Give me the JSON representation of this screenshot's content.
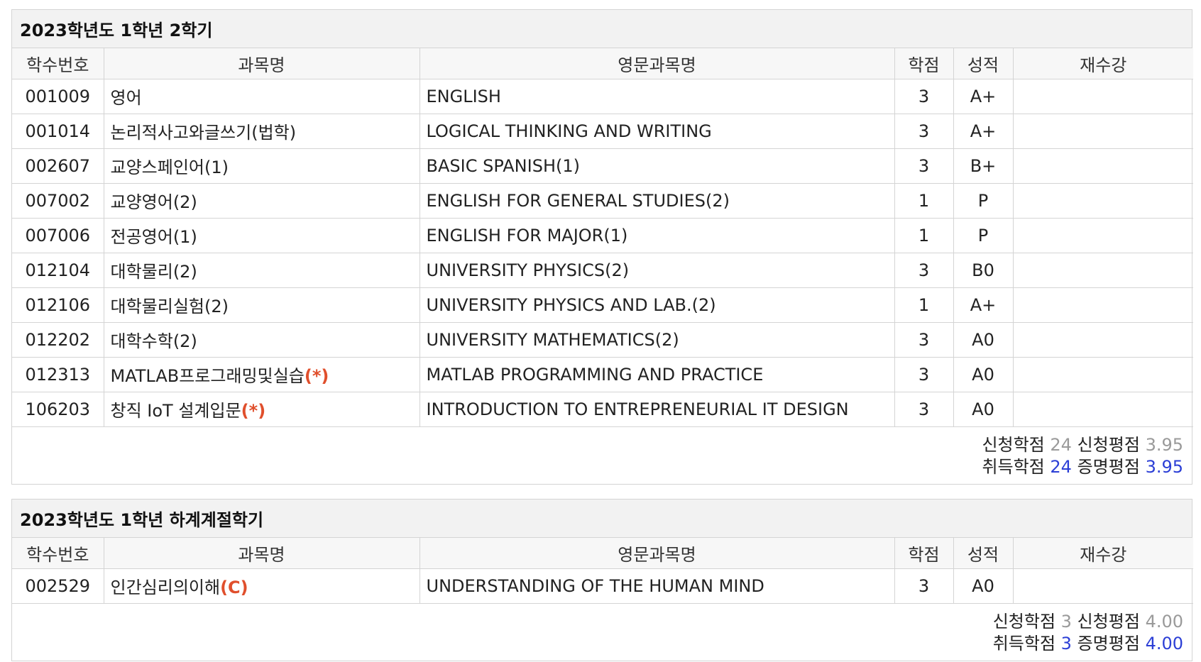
{
  "columns": {
    "code": "학수번호",
    "name": "과목명",
    "eng": "영문과목명",
    "credit": "학점",
    "grade": "성적",
    "retake": "재수강"
  },
  "summary_labels": {
    "applied_credits": "신청학점",
    "applied_gpa": "신청평점",
    "earned_credits": "취득학점",
    "certified_gpa": "증명평점"
  },
  "colors": {
    "mark": "#e04f2c",
    "blue_value": "#2c3fd6",
    "gray_value": "#9a9a9a"
  },
  "semesters": [
    {
      "title": "2023학년도 1학년 2학기",
      "rows": [
        {
          "code": "001009",
          "name": "영어",
          "mark": "",
          "eng": "ENGLISH",
          "credit": "3",
          "grade": "A+",
          "retake": ""
        },
        {
          "code": "001014",
          "name": "논리적사고와글쓰기(법학)",
          "mark": "",
          "eng": "LOGICAL THINKING AND WRITING",
          "credit": "3",
          "grade": "A+",
          "retake": ""
        },
        {
          "code": "002607",
          "name": "교양스페인어(1)",
          "mark": "",
          "eng": "BASIC SPANISH(1)",
          "credit": "3",
          "grade": "B+",
          "retake": ""
        },
        {
          "code": "007002",
          "name": "교양영어(2)",
          "mark": "",
          "eng": "ENGLISH FOR GENERAL STUDIES(2)",
          "credit": "1",
          "grade": "P",
          "retake": ""
        },
        {
          "code": "007006",
          "name": "전공영어(1)",
          "mark": "",
          "eng": "ENGLISH FOR MAJOR(1)",
          "credit": "1",
          "grade": "P",
          "retake": ""
        },
        {
          "code": "012104",
          "name": "대학물리(2)",
          "mark": "",
          "eng": "UNIVERSITY PHYSICS(2)",
          "credit": "3",
          "grade": "B0",
          "retake": ""
        },
        {
          "code": "012106",
          "name": "대학물리실험(2)",
          "mark": "",
          "eng": "UNIVERSITY PHYSICS AND LAB.(2)",
          "credit": "1",
          "grade": "A+",
          "retake": ""
        },
        {
          "code": "012202",
          "name": "대학수학(2)",
          "mark": "",
          "eng": "UNIVERSITY MATHEMATICS(2)",
          "credit": "3",
          "grade": "A0",
          "retake": ""
        },
        {
          "code": "012313",
          "name": "MATLAB프로그래밍및실습",
          "mark": "(*)",
          "eng": "MATLAB PROGRAMMING AND PRACTICE",
          "credit": "3",
          "grade": "A0",
          "retake": ""
        },
        {
          "code": "106203",
          "name": "창직 IoT 설계입문",
          "mark": "(*)",
          "eng": "INTRODUCTION TO ENTREPRENEURIAL IT DESIGN",
          "credit": "3",
          "grade": "A0",
          "retake": ""
        }
      ],
      "summary": {
        "applied_credits": "24",
        "applied_gpa": "3.95",
        "earned_credits": "24",
        "certified_gpa": "3.95"
      }
    },
    {
      "title": "2023학년도 1학년 하계계절학기",
      "rows": [
        {
          "code": "002529",
          "name": "인간심리의이해",
          "mark": "(C)",
          "eng": "UNDERSTANDING OF THE HUMAN MIND",
          "credit": "3",
          "grade": "A0",
          "retake": ""
        }
      ],
      "summary": {
        "applied_credits": "3",
        "applied_gpa": "4.00",
        "earned_credits": "3",
        "certified_gpa": "4.00"
      }
    }
  ]
}
